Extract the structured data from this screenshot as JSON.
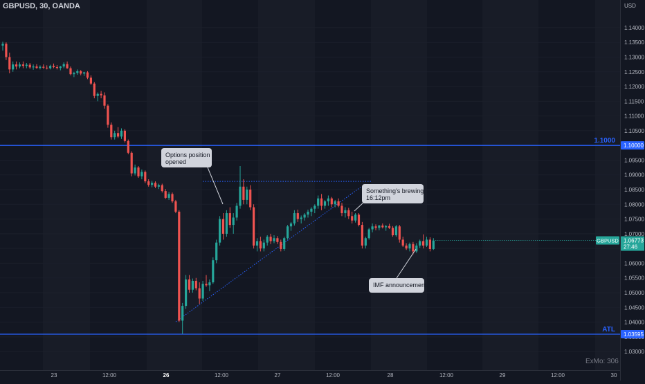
{
  "header": {
    "symbol_title": "GBPUSD, 30, OANDA",
    "currency": "USD"
  },
  "watermark": "ExMo: 306",
  "colors": {
    "background": "#131722",
    "up": "#26a69a",
    "down": "#ef5350",
    "level_line": "#2962ff",
    "annotation_bg": "#d1d4dc",
    "annotation_text": "#131722",
    "axis_text": "#b2b5be"
  },
  "chart_data": {
    "type": "candlestick",
    "symbol": "GBPUSD",
    "interval": "30",
    "source": "OANDA",
    "y_axis": {
      "ticks": [
        "1.14000",
        "1.13500",
        "1.13000",
        "1.12500",
        "1.12000",
        "1.11500",
        "1.11000",
        "1.10500",
        "1.10000",
        "1.09500",
        "1.09000",
        "1.08500",
        "1.08000",
        "1.07500",
        "1.07000",
        "1.06500",
        "1.06000",
        "1.05500",
        "1.05000",
        "1.04500",
        "1.04000",
        "1.03500",
        "1.03000"
      ],
      "ylim": [
        1.0265,
        1.1475
      ]
    },
    "x_axis": {
      "ticks": [
        {
          "label": "23",
          "bold": false
        },
        {
          "label": "12:00",
          "bold": false
        },
        {
          "label": "26",
          "bold": true
        },
        {
          "label": "12:00",
          "bold": false
        },
        {
          "label": "27",
          "bold": false
        },
        {
          "label": "12:00",
          "bold": false
        },
        {
          "label": "28",
          "bold": false
        },
        {
          "label": "12:00",
          "bold": false
        },
        {
          "label": "29",
          "bold": false
        },
        {
          "label": "12:00",
          "bold": false
        },
        {
          "label": "30",
          "bold": false
        }
      ]
    },
    "horizontal_levels": [
      {
        "label": "1.1000",
        "price": 1.1,
        "axis_label": "1.10000"
      },
      {
        "label": "ATL",
        "price": 1.0359,
        "axis_label": "1.03595"
      }
    ],
    "last_price": {
      "symbol": "GBPUSD",
      "price": "1.06773",
      "countdown": "27:46"
    },
    "annotations": [
      {
        "text": [
          "Options position",
          "opened"
        ]
      },
      {
        "text": [
          "Something's brewing",
          "16:12pm"
        ]
      },
      {
        "text": [
          "IMF announcement"
        ]
      }
    ],
    "trendline": {
      "from_price": 1.0401,
      "to_price": 1.0858
    },
    "resistance_dotted": {
      "price": 1.0878
    },
    "candles": [
      [
        1.1339,
        1.1352,
        1.1322,
        1.1345
      ],
      [
        1.1345,
        1.135,
        1.129,
        1.13
      ],
      [
        1.13,
        1.1315,
        1.1245,
        1.1258
      ],
      [
        1.1258,
        1.1285,
        1.125,
        1.1275
      ],
      [
        1.1275,
        1.1285,
        1.1258,
        1.1268
      ],
      [
        1.1268,
        1.1282,
        1.1262,
        1.1275
      ],
      [
        1.1275,
        1.1285,
        1.1262,
        1.127
      ],
      [
        1.127,
        1.128,
        1.1262,
        1.1274
      ],
      [
        1.1274,
        1.128,
        1.126,
        1.1265
      ],
      [
        1.1265,
        1.1275,
        1.1257,
        1.1268
      ],
      [
        1.1268,
        1.1276,
        1.126,
        1.1263
      ],
      [
        1.1263,
        1.1272,
        1.1258,
        1.1267
      ],
      [
        1.1267,
        1.1275,
        1.126,
        1.1264
      ],
      [
        1.1264,
        1.1272,
        1.1258,
        1.1262
      ],
      [
        1.1262,
        1.1274,
        1.1258,
        1.127
      ],
      [
        1.127,
        1.1278,
        1.1262,
        1.1266
      ],
      [
        1.1266,
        1.1273,
        1.1258,
        1.1263
      ],
      [
        1.1263,
        1.127,
        1.1255,
        1.1268
      ],
      [
        1.1268,
        1.1282,
        1.1262,
        1.1276
      ],
      [
        1.1276,
        1.1285,
        1.126,
        1.1262
      ],
      [
        1.1262,
        1.1268,
        1.1238,
        1.1242
      ],
      [
        1.1242,
        1.125,
        1.1232,
        1.1246
      ],
      [
        1.1246,
        1.1258,
        1.124,
        1.1252
      ],
      [
        1.1252,
        1.1256,
        1.1238,
        1.1244
      ],
      [
        1.1244,
        1.125,
        1.1236,
        1.1248
      ],
      [
        1.1248,
        1.1252,
        1.1225,
        1.123
      ],
      [
        1.123,
        1.1238,
        1.1205,
        1.121
      ],
      [
        1.121,
        1.1215,
        1.116,
        1.1168
      ],
      [
        1.1168,
        1.118,
        1.115,
        1.1175
      ],
      [
        1.1175,
        1.1185,
        1.116,
        1.117
      ],
      [
        1.117,
        1.118,
        1.1125,
        1.1135
      ],
      [
        1.1135,
        1.114,
        1.106,
        1.107
      ],
      [
        1.107,
        1.1078,
        1.102,
        1.1028
      ],
      [
        1.1028,
        1.105,
        1.102,
        1.1042
      ],
      [
        1.1042,
        1.1062,
        1.1025,
        1.103
      ],
      [
        1.103,
        1.1058,
        1.1022,
        1.105
      ],
      [
        1.105,
        1.1055,
        1.101,
        1.1015
      ],
      [
        1.1015,
        1.102,
        1.097,
        1.0975
      ],
      [
        1.0975,
        1.098,
        1.0895,
        1.0905
      ],
      [
        1.0905,
        1.0935,
        1.0898,
        1.0925
      ],
      [
        1.0925,
        1.093,
        1.089,
        1.0895
      ],
      [
        1.0895,
        1.0918,
        1.0885,
        1.091
      ],
      [
        1.091,
        1.0915,
        1.0872,
        1.0878
      ],
      [
        1.0878,
        1.0885,
        1.086,
        1.0866
      ],
      [
        1.0866,
        1.088,
        1.0858,
        1.0873
      ],
      [
        1.0873,
        1.0878,
        1.0855,
        1.086
      ],
      [
        1.086,
        1.087,
        1.0852,
        1.0865
      ],
      [
        1.0865,
        1.087,
        1.084,
        1.0845
      ],
      [
        1.0845,
        1.0852,
        1.0818,
        1.0822
      ],
      [
        1.0822,
        1.0842,
        1.0815,
        1.0835
      ],
      [
        1.0835,
        1.084,
        1.0805,
        1.081
      ],
      [
        1.081,
        1.0815,
        1.077,
        1.0775
      ],
      [
        1.0775,
        1.078,
        1.04,
        1.0405
      ],
      [
        1.0405,
        1.0465,
        1.036,
        1.0455
      ],
      [
        1.0455,
        1.056,
        1.0445,
        1.0545
      ],
      [
        1.0545,
        1.056,
        1.05,
        1.051
      ],
      [
        1.051,
        1.0548,
        1.05,
        1.054
      ],
      [
        1.054,
        1.055,
        1.0508,
        1.0515
      ],
      [
        1.0515,
        1.0535,
        1.0462,
        1.048
      ],
      [
        1.048,
        1.054,
        1.0472,
        1.053
      ],
      [
        1.053,
        1.056,
        1.052,
        1.0525
      ],
      [
        1.0525,
        1.0545,
        1.0505,
        1.0535
      ],
      [
        1.0535,
        1.062,
        1.053,
        1.061
      ],
      [
        1.061,
        1.068,
        1.06,
        1.067
      ],
      [
        1.067,
        1.076,
        1.066,
        1.075
      ],
      [
        1.075,
        1.077,
        1.068,
        1.07
      ],
      [
        1.07,
        1.078,
        1.069,
        1.077
      ],
      [
        1.077,
        1.079,
        1.072,
        1.073
      ],
      [
        1.073,
        1.077,
        1.07,
        1.0755
      ],
      [
        1.0755,
        1.0805,
        1.0745,
        1.0795
      ],
      [
        1.0795,
        1.093,
        1.0785,
        1.086
      ],
      [
        1.086,
        1.0885,
        1.08,
        1.0815
      ],
      [
        1.0815,
        1.086,
        1.08,
        1.085
      ],
      [
        1.085,
        1.0865,
        1.078,
        1.079
      ],
      [
        1.079,
        1.08,
        1.065,
        1.066
      ],
      [
        1.066,
        1.0685,
        1.064,
        1.0675
      ],
      [
        1.0675,
        1.069,
        1.064,
        1.065
      ],
      [
        1.065,
        1.068,
        1.064,
        1.067
      ],
      [
        1.067,
        1.0695,
        1.066,
        1.069
      ],
      [
        1.069,
        1.07,
        1.0665,
        1.0675
      ],
      [
        1.0675,
        1.0695,
        1.0668,
        1.0685
      ],
      [
        1.0685,
        1.0692,
        1.0665,
        1.0672
      ],
      [
        1.0672,
        1.068,
        1.064,
        1.0648
      ],
      [
        1.0648,
        1.069,
        1.0642,
        1.0685
      ],
      [
        1.0685,
        1.073,
        1.068,
        1.0725
      ],
      [
        1.0725,
        1.074,
        1.071,
        1.0735
      ],
      [
        1.0735,
        1.078,
        1.0728,
        1.077
      ],
      [
        1.077,
        1.0782,
        1.074,
        1.075
      ],
      [
        1.075,
        1.0762,
        1.0735,
        1.0755
      ],
      [
        1.0755,
        1.077,
        1.0745,
        1.0765
      ],
      [
        1.0765,
        1.0782,
        1.0755,
        1.0775
      ],
      [
        1.0775,
        1.079,
        1.076,
        1.0785
      ],
      [
        1.0785,
        1.08,
        1.077,
        1.0795
      ],
      [
        1.0795,
        1.083,
        1.0785,
        1.082
      ],
      [
        1.082,
        1.0835,
        1.078,
        1.0795
      ],
      [
        1.0795,
        1.0815,
        1.0785,
        1.081
      ],
      [
        1.081,
        1.083,
        1.0795,
        1.082
      ],
      [
        1.082,
        1.0825,
        1.079,
        1.08
      ],
      [
        1.08,
        1.0815,
        1.079,
        1.081
      ],
      [
        1.081,
        1.082,
        1.079,
        1.0795
      ],
      [
        1.0795,
        1.0805,
        1.076,
        1.077
      ],
      [
        1.077,
        1.079,
        1.0755,
        1.078
      ],
      [
        1.078,
        1.0788,
        1.075,
        1.076
      ],
      [
        1.076,
        1.0775,
        1.0735,
        1.0745
      ],
      [
        1.0745,
        1.077,
        1.0738,
        1.0765
      ],
      [
        1.0765,
        1.077,
        1.0725,
        1.073
      ],
      [
        1.073,
        1.074,
        1.065,
        1.066
      ],
      [
        1.066,
        1.069,
        1.065,
        1.0685
      ],
      [
        1.0685,
        1.072,
        1.068,
        1.0715
      ],
      [
        1.0715,
        1.0735,
        1.0705,
        1.0725
      ],
      [
        1.0725,
        1.0732,
        1.0712,
        1.072
      ],
      [
        1.072,
        1.073,
        1.0712,
        1.0728
      ],
      [
        1.0728,
        1.0735,
        1.0718,
        1.0722
      ],
      [
        1.0722,
        1.073,
        1.071,
        1.0726
      ],
      [
        1.0726,
        1.0734,
        1.0716,
        1.072
      ],
      [
        1.072,
        1.0726,
        1.069,
        1.0695
      ],
      [
        1.0695,
        1.073,
        1.069,
        1.0725
      ],
      [
        1.0725,
        1.073,
        1.067,
        1.068
      ],
      [
        1.068,
        1.069,
        1.0655,
        1.066
      ],
      [
        1.066,
        1.0668,
        1.0645,
        1.065
      ],
      [
        1.065,
        1.067,
        1.064,
        1.0665
      ],
      [
        1.0665,
        1.0672,
        1.063,
        1.064
      ],
      [
        1.064,
        1.0668,
        1.0635,
        1.066
      ],
      [
        1.066,
        1.068,
        1.0652,
        1.0675
      ],
      [
        1.0675,
        1.0698,
        1.065,
        1.066
      ],
      [
        1.066,
        1.069,
        1.0655,
        1.068
      ],
      [
        1.068,
        1.0688,
        1.064,
        1.0648
      ],
      [
        1.0648,
        1.0685,
        1.0645,
        1.0677
      ]
    ]
  }
}
